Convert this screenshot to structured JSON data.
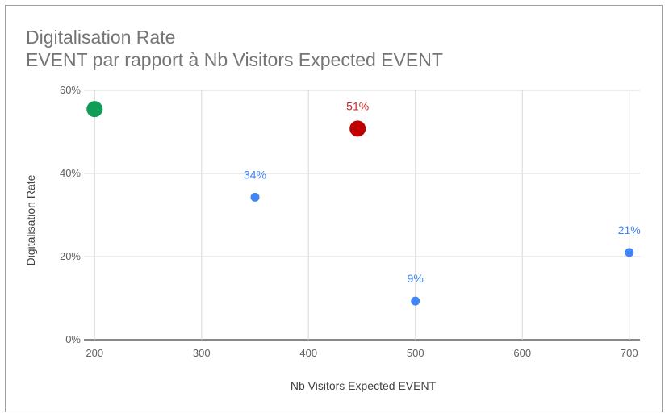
{
  "chart_data": {
    "type": "scatter",
    "title": "Digitalisation Rate",
    "subtitle": "EVENT par rapport à Nb Visitors Expected EVENT",
    "xlabel": "Nb Visitors Expected EVENT",
    "ylabel": "Digitalisation Rate",
    "xlim": [
      190,
      710
    ],
    "ylim": [
      0,
      60
    ],
    "x_ticks": [
      200,
      300,
      400,
      500,
      600,
      700
    ],
    "y_ticks": [
      0,
      20,
      40,
      60
    ],
    "y_tick_labels": [
      "0%",
      "20%",
      "40%",
      "60%"
    ],
    "grid": true,
    "points": [
      {
        "x": 200,
        "y": 55.5,
        "label": "",
        "color": "#0f9d58",
        "size": "large"
      },
      {
        "x": 350,
        "y": 34.3,
        "label": "34%",
        "color": "#4285f4",
        "size": "small"
      },
      {
        "x": 446,
        "y": 50.8,
        "label": "51%",
        "color": "#c00000",
        "size": "large"
      },
      {
        "x": 500,
        "y": 9.3,
        "label": "9%",
        "color": "#4285f4",
        "size": "small"
      },
      {
        "x": 700,
        "y": 21.0,
        "label": "21%",
        "color": "#4285f4",
        "size": "small"
      }
    ]
  }
}
